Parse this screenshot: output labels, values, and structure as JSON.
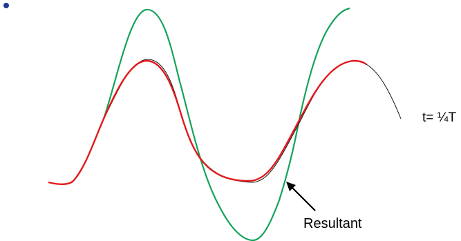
{
  "labels": {
    "time": "t= ¼T",
    "resultant": "Resultant"
  },
  "colors": {
    "bullet": "#1f3a93",
    "green_wave": "#13a35a",
    "red_wave": "#e3191b",
    "black_wave": "#111111",
    "arrow": "#000000"
  },
  "icons": {
    "bullet": "bullet-dot-icon",
    "arrow": "arrow-pointer-icon"
  }
}
